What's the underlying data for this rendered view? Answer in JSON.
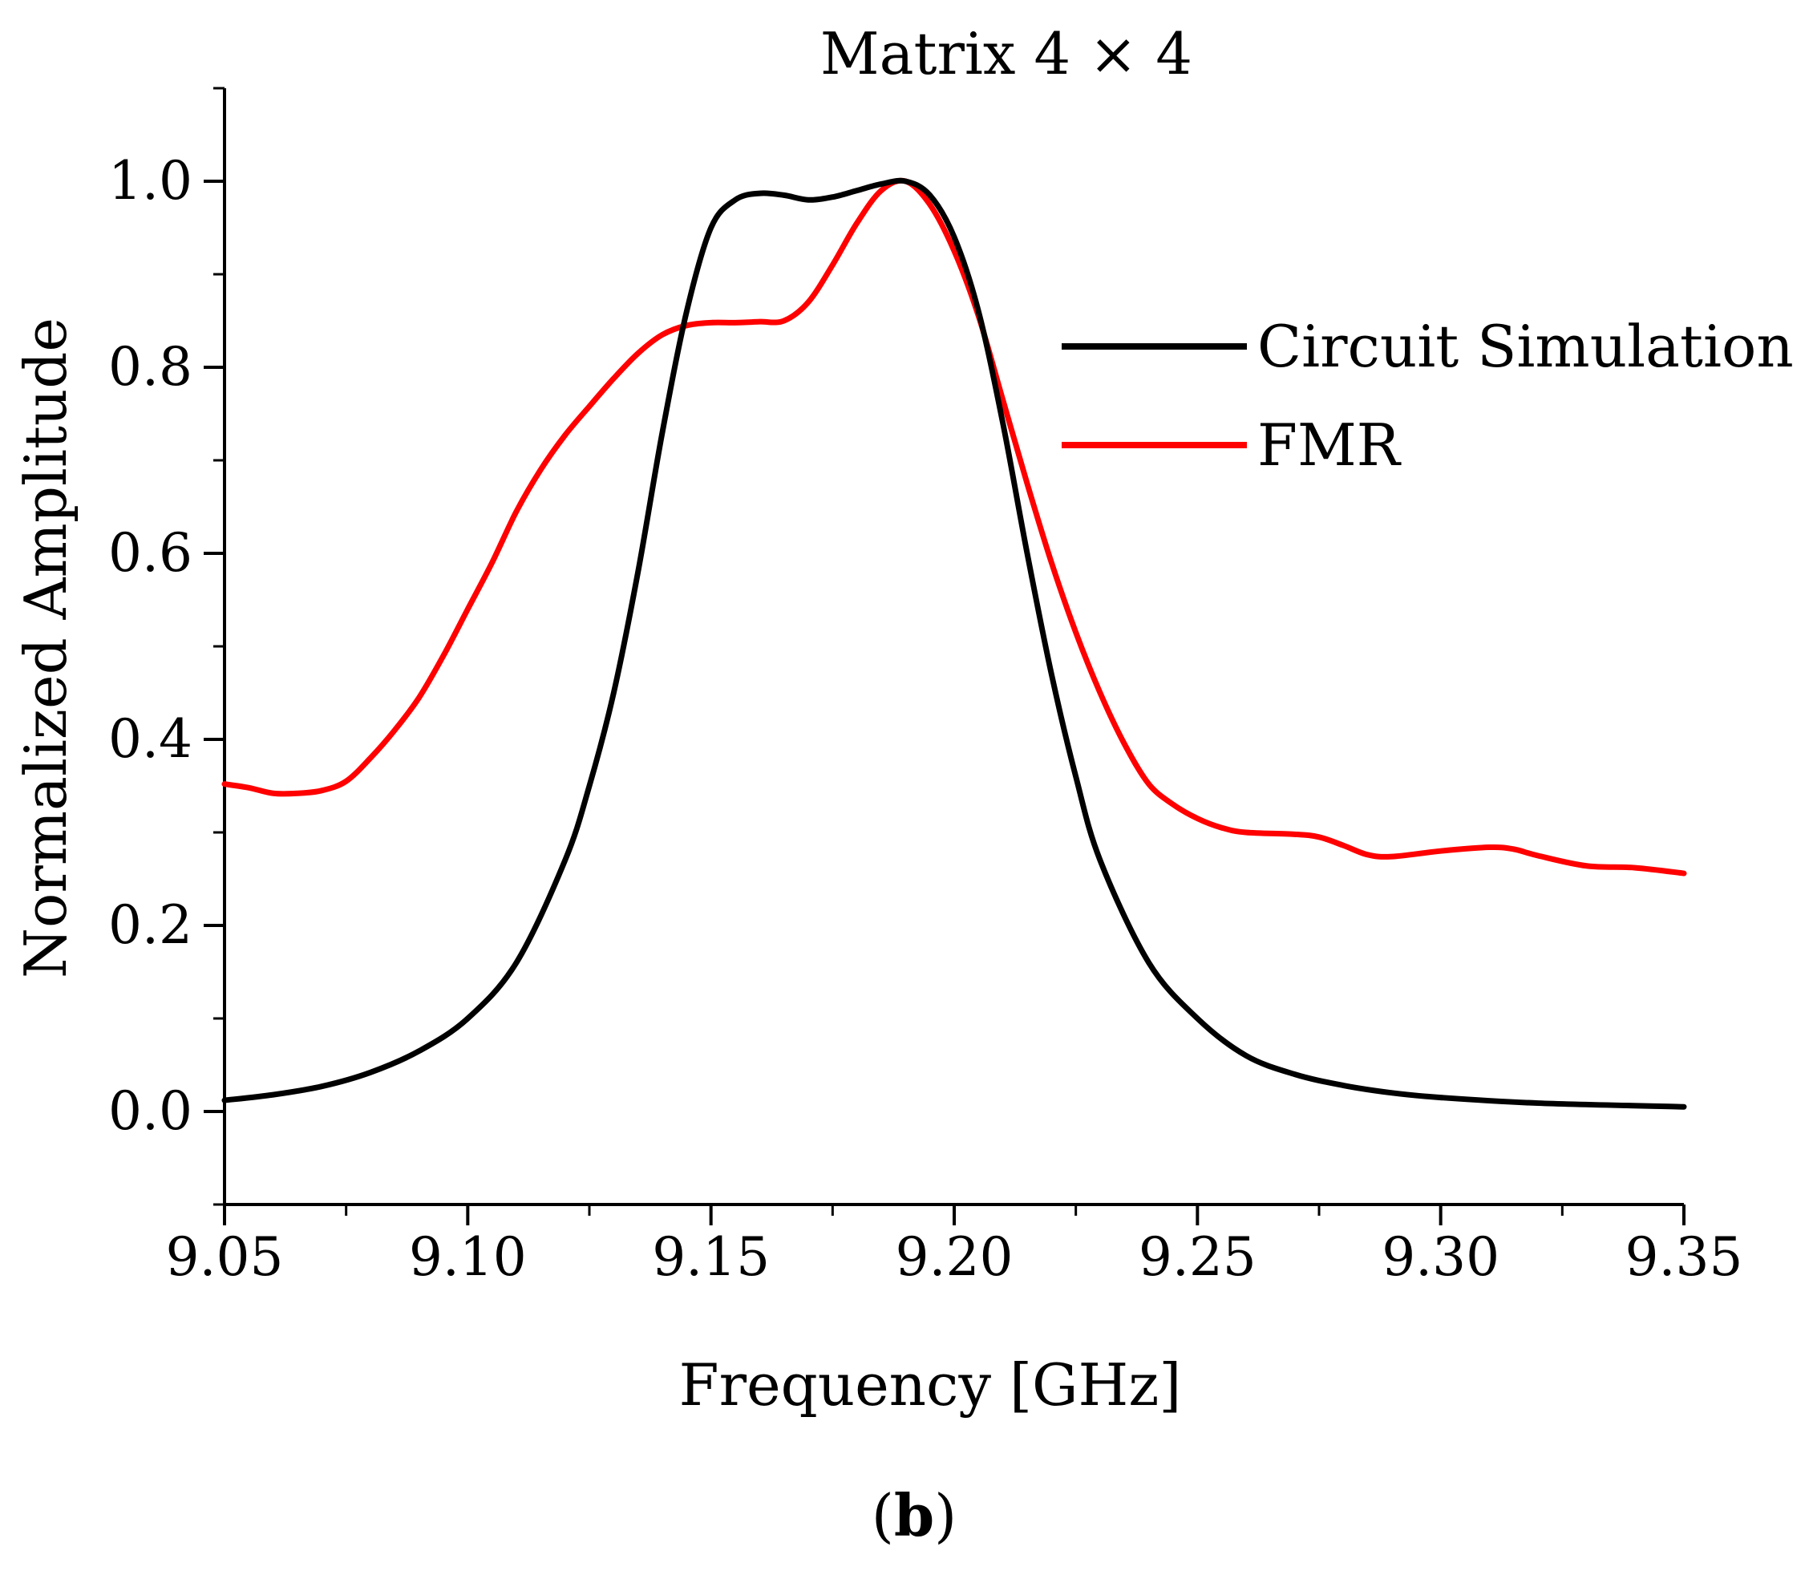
{
  "chart_data": {
    "type": "line",
    "title": "Matrix 4 × 4",
    "xlabel": "Frequency [GHz]",
    "ylabel": "Normalized Amplitude",
    "xlim": [
      9.05,
      9.35
    ],
    "ylim": [
      -0.1,
      1.1
    ],
    "x_ticks": [
      9.05,
      9.1,
      9.15,
      9.2,
      9.25,
      9.3,
      9.35
    ],
    "x_tick_labels": [
      "9.05",
      "9.10",
      "9.15",
      "9.20",
      "9.25",
      "9.30",
      "9.35"
    ],
    "y_ticks": [
      0.0,
      0.2,
      0.4,
      0.6,
      0.8,
      1.0
    ],
    "y_tick_labels": [
      "0.0",
      "0.2",
      "0.4",
      "0.6",
      "0.8",
      "1.0"
    ],
    "legend_position": "right",
    "panel_label": {
      "open": "(",
      "letter": "b",
      "close": ")"
    },
    "series": [
      {
        "name": "Circuit Simulation",
        "color": "#000000",
        "x": [
          9.05,
          9.06,
          9.07,
          9.08,
          9.09,
          9.1,
          9.11,
          9.12,
          9.125,
          9.13,
          9.135,
          9.14,
          9.145,
          9.15,
          9.155,
          9.16,
          9.165,
          9.17,
          9.175,
          9.18,
          9.185,
          9.19,
          9.195,
          9.2,
          9.205,
          9.21,
          9.215,
          9.22,
          9.225,
          9.23,
          9.24,
          9.25,
          9.26,
          9.27,
          9.28,
          9.29,
          9.3,
          9.32,
          9.35
        ],
        "values": [
          0.012,
          0.018,
          0.027,
          0.042,
          0.065,
          0.1,
          0.16,
          0.27,
          0.35,
          0.45,
          0.58,
          0.73,
          0.86,
          0.95,
          0.98,
          0.987,
          0.985,
          0.98,
          0.983,
          0.99,
          0.997,
          1.0,
          0.985,
          0.94,
          0.86,
          0.74,
          0.6,
          0.47,
          0.36,
          0.27,
          0.16,
          0.1,
          0.06,
          0.04,
          0.028,
          0.02,
          0.015,
          0.009,
          0.005
        ]
      },
      {
        "name": "FMR",
        "color": "#ff0000",
        "x": [
          9.05,
          9.055,
          9.06,
          9.065,
          9.07,
          9.075,
          9.08,
          9.085,
          9.09,
          9.095,
          9.1,
          9.105,
          9.11,
          9.115,
          9.12,
          9.125,
          9.13,
          9.135,
          9.14,
          9.145,
          9.15,
          9.155,
          9.16,
          9.165,
          9.17,
          9.175,
          9.18,
          9.185,
          9.19,
          9.195,
          9.2,
          9.205,
          9.21,
          9.215,
          9.22,
          9.225,
          9.23,
          9.235,
          9.24,
          9.245,
          9.25,
          9.255,
          9.26,
          9.27,
          9.275,
          9.28,
          9.285,
          9.29,
          9.3,
          9.31,
          9.315,
          9.32,
          9.33,
          9.34,
          9.35
        ],
        "values": [
          0.352,
          0.348,
          0.342,
          0.342,
          0.345,
          0.355,
          0.38,
          0.41,
          0.445,
          0.49,
          0.54,
          0.59,
          0.645,
          0.69,
          0.727,
          0.758,
          0.788,
          0.815,
          0.835,
          0.845,
          0.848,
          0.848,
          0.849,
          0.85,
          0.87,
          0.91,
          0.955,
          0.99,
          1.0,
          0.975,
          0.925,
          0.855,
          0.765,
          0.675,
          0.59,
          0.515,
          0.45,
          0.395,
          0.352,
          0.33,
          0.315,
          0.305,
          0.3,
          0.298,
          0.295,
          0.286,
          0.276,
          0.274,
          0.28,
          0.284,
          0.282,
          0.275,
          0.264,
          0.262,
          0.256
        ]
      }
    ]
  }
}
